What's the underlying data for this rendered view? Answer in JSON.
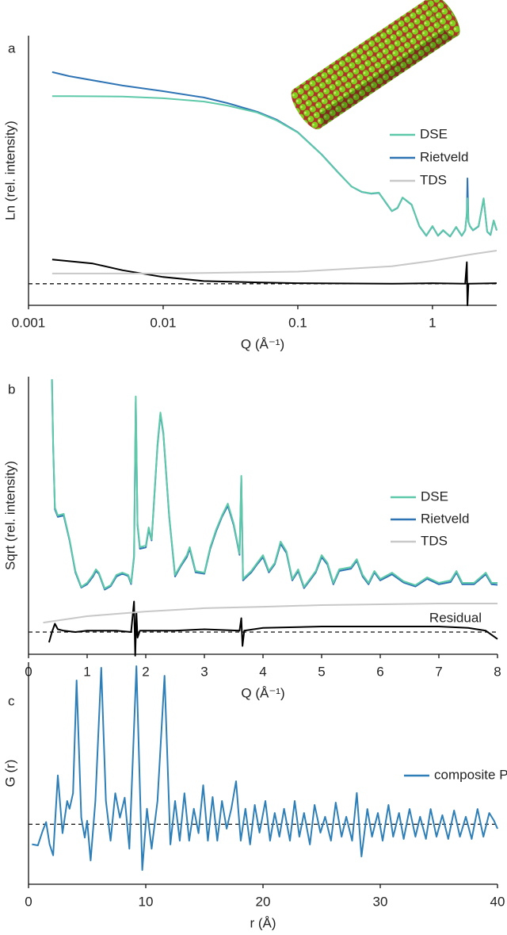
{
  "chart_data": [
    {
      "type": "line",
      "panel_label": "a",
      "xlabel": "Q (Å⁻¹)",
      "ylabel": "Ln (rel. intensity)",
      "log_x": true,
      "xlim": [
        0.001,
        3.0
      ],
      "xticks": [
        0.001,
        0.01,
        0.1,
        1
      ],
      "ylim": [
        0,
        10
      ],
      "zero_line": 0.8,
      "series": [
        {
          "name": "DSE",
          "color": "#5ec9a9",
          "x": [
            0.0015,
            0.002,
            0.005,
            0.01,
            0.02,
            0.03,
            0.05,
            0.07,
            0.1,
            0.15,
            0.2,
            0.25,
            0.3,
            0.35,
            0.4,
            0.45,
            0.5,
            0.55,
            0.6,
            0.7,
            0.8,
            0.9,
            1.0,
            1.1,
            1.2,
            1.35,
            1.5,
            1.65,
            1.75,
            1.8,
            1.82,
            1.85,
            1.9,
            2.0,
            2.2,
            2.4,
            2.55,
            2.7,
            2.85,
            3.0
          ],
          "values": [
            7.76,
            7.76,
            7.74,
            7.68,
            7.56,
            7.41,
            7.15,
            6.85,
            6.41,
            5.59,
            4.91,
            4.41,
            4.21,
            4.15,
            4.18,
            3.82,
            3.5,
            3.62,
            4.0,
            3.74,
            2.94,
            2.59,
            2.94,
            2.59,
            2.79,
            2.56,
            2.91,
            2.59,
            2.79,
            3.38,
            3.97,
            3.09,
            2.94,
            2.79,
            2.94,
            3.97,
            2.74,
            2.62,
            3.15,
            2.79
          ]
        },
        {
          "name": "Rietveld",
          "color": "#2e74b5",
          "x": [
            0.0015,
            0.002,
            0.005,
            0.01,
            0.02,
            0.03,
            0.05,
            0.07,
            0.1,
            0.15,
            0.2,
            0.25,
            0.3,
            0.35,
            0.4,
            0.45,
            0.5,
            0.55,
            0.6,
            0.7,
            0.8,
            0.9,
            1.0,
            1.1,
            1.2,
            1.35,
            1.5,
            1.65,
            1.75,
            1.8,
            1.82,
            1.85,
            1.9,
            2.0,
            2.2,
            2.4,
            2.55,
            2.7,
            2.85,
            3.0
          ],
          "values": [
            8.65,
            8.5,
            8.15,
            7.94,
            7.71,
            7.5,
            7.18,
            6.88,
            6.42,
            5.6,
            4.92,
            4.41,
            4.2,
            4.14,
            4.17,
            3.81,
            3.49,
            3.61,
            3.99,
            3.73,
            2.93,
            2.58,
            2.93,
            2.58,
            2.78,
            2.55,
            2.9,
            2.58,
            2.78,
            3.4,
            4.71,
            3.1,
            2.93,
            2.78,
            2.93,
            3.95,
            2.73,
            2.61,
            3.14,
            2.78
          ]
        },
        {
          "name": "TDS",
          "color": "#c8c8c8",
          "x": [
            0.0015,
            0.01,
            0.1,
            0.5,
            1,
            2,
            3
          ],
          "values": [
            1.18,
            1.18,
            1.25,
            1.45,
            1.65,
            1.9,
            2.03
          ]
        },
        {
          "color": "#000000",
          "x": [
            0.0015,
            0.003,
            0.005,
            0.01,
            0.02,
            0.05,
            0.1,
            0.5,
            1,
            1.75,
            1.8,
            1.82,
            1.85,
            3.0
          ],
          "values": [
            1.7,
            1.55,
            1.3,
            1.05,
            0.9,
            0.85,
            0.82,
            0.8,
            0.82,
            0.8,
            1.6,
            0.0,
            0.8,
            0.82
          ]
        }
      ]
    },
    {
      "type": "line",
      "panel_label": "b",
      "xlabel": "Q (Å⁻¹)",
      "ylabel": "Sqrt (rel. intensity)",
      "annotation": "Residual",
      "xlim": [
        0,
        8
      ],
      "xticks": [
        0,
        1,
        2,
        3,
        4,
        5,
        6,
        7,
        8
      ],
      "ylim": [
        0,
        10
      ],
      "zero_line": 0.8,
      "series": [
        {
          "name": "DSE",
          "color": "#5ec9a9",
          "x": [
            0.4,
            0.42,
            0.45,
            0.5,
            0.6,
            0.7,
            0.8,
            0.9,
            1.0,
            1.1,
            1.15,
            1.2,
            1.3,
            1.4,
            1.5,
            1.6,
            1.7,
            1.75,
            1.8,
            1.83,
            1.86,
            1.9,
            2.0,
            2.05,
            2.1,
            2.2,
            2.25,
            2.3,
            2.4,
            2.5,
            2.6,
            2.7,
            2.75,
            2.85,
            3.0,
            3.1,
            3.2,
            3.3,
            3.4,
            3.5,
            3.6,
            3.63,
            3.66,
            3.7,
            3.8,
            3.9,
            4.0,
            4.1,
            4.2,
            4.3,
            4.4,
            4.5,
            4.6,
            4.7,
            4.8,
            4.9,
            5.0,
            5.1,
            5.2,
            5.3,
            5.5,
            5.6,
            5.7,
            5.8,
            5.9,
            6.0,
            6.2,
            6.4,
            6.6,
            6.8,
            7.0,
            7.2,
            7.3,
            7.4,
            7.6,
            7.8,
            7.9,
            8.0
          ],
          "values": [
            9.91,
            7.57,
            5.29,
            5.0,
            5.06,
            4.14,
            3.0,
            2.43,
            2.57,
            2.86,
            3.06,
            2.94,
            2.37,
            2.49,
            2.86,
            2.94,
            2.86,
            2.57,
            3.57,
            9.29,
            4.71,
            3.86,
            3.91,
            4.57,
            4.14,
            7.57,
            8.71,
            8.0,
            5.0,
            2.86,
            3.23,
            3.57,
            3.86,
            3.0,
            2.94,
            3.86,
            4.49,
            5.0,
            5.43,
            4.71,
            3.63,
            6.43,
            2.71,
            2.8,
            3.0,
            3.29,
            3.57,
            3.0,
            3.29,
            4.06,
            3.71,
            2.71,
            3.06,
            2.43,
            2.71,
            3.0,
            3.57,
            3.29,
            2.57,
            3.06,
            3.14,
            3.43,
            2.86,
            2.57,
            3.0,
            2.71,
            2.94,
            2.63,
            2.49,
            2.77,
            2.57,
            2.66,
            3.0,
            2.57,
            2.57,
            2.94,
            2.57,
            2.57
          ]
        },
        {
          "name": "Rietveld",
          "color": "#2e74b5",
          "x": [
            0.4,
            0.42,
            0.45,
            0.5,
            0.6,
            0.7,
            0.8,
            0.9,
            1.0,
            1.1,
            1.15,
            1.2,
            1.3,
            1.4,
            1.5,
            1.6,
            1.7,
            1.75,
            1.8,
            1.83,
            1.86,
            1.9,
            2.0,
            2.05,
            2.1,
            2.2,
            2.25,
            2.3,
            2.4,
            2.5,
            2.6,
            2.7,
            2.75,
            2.85,
            3.0,
            3.1,
            3.2,
            3.3,
            3.4,
            3.5,
            3.6,
            3.63,
            3.66,
            3.7,
            3.8,
            3.9,
            4.0,
            4.1,
            4.2,
            4.3,
            4.4,
            4.5,
            4.6,
            4.7,
            4.8,
            4.9,
            5.0,
            5.1,
            5.2,
            5.3,
            5.5,
            5.6,
            5.7,
            5.8,
            5.9,
            6.0,
            6.2,
            6.4,
            6.6,
            6.8,
            7.0,
            7.2,
            7.3,
            7.4,
            7.6,
            7.8,
            7.9,
            8.0
          ],
          "values": [
            9.9,
            7.5,
            5.22,
            4.95,
            5.0,
            4.1,
            2.95,
            2.4,
            2.52,
            2.8,
            3.0,
            2.9,
            2.33,
            2.45,
            2.8,
            2.9,
            2.82,
            2.53,
            3.5,
            9.1,
            4.65,
            3.8,
            3.85,
            4.5,
            4.1,
            7.5,
            8.65,
            7.95,
            4.95,
            2.8,
            3.18,
            3.5,
            3.8,
            2.95,
            2.9,
            3.8,
            4.43,
            4.95,
            5.35,
            4.65,
            3.58,
            6.35,
            2.66,
            2.75,
            2.95,
            3.24,
            3.5,
            2.95,
            3.24,
            3.98,
            3.65,
            2.66,
            3.0,
            2.38,
            2.66,
            2.95,
            3.5,
            3.23,
            2.52,
            3.0,
            3.08,
            3.37,
            2.8,
            2.52,
            2.95,
            2.66,
            2.88,
            2.58,
            2.44,
            2.72,
            2.52,
            2.6,
            2.94,
            2.52,
            2.52,
            2.88,
            2.52,
            2.5
          ]
        },
        {
          "name": "TDS",
          "color": "#c8c8c8",
          "x": [
            0.25,
            1,
            2,
            3,
            4,
            5,
            6,
            7,
            8
          ],
          "values": [
            1.14,
            1.37,
            1.54,
            1.66,
            1.71,
            1.77,
            1.8,
            1.83,
            1.83
          ]
        },
        {
          "color": "#000000",
          "x": [
            0.35,
            0.4,
            0.45,
            0.5,
            0.6,
            0.8,
            1.0,
            1.5,
            1.75,
            1.8,
            1.82,
            1.84,
            1.86,
            1.9,
            2.5,
            3.0,
            3.6,
            3.63,
            3.65,
            3.68,
            4.0,
            5.0,
            6.0,
            7.0,
            7.5,
            7.8,
            8.0
          ],
          "values": [
            0.43,
            0.8,
            1.1,
            0.9,
            0.85,
            0.8,
            0.85,
            0.85,
            0.8,
            1.9,
            -0.05,
            1.5,
            0.6,
            0.85,
            0.85,
            0.9,
            0.85,
            1.3,
            0.3,
            0.85,
            0.95,
            1.0,
            1.0,
            1.0,
            0.95,
            0.85,
            0.55
          ]
        }
      ]
    },
    {
      "type": "line",
      "panel_label": "c",
      "xlabel": "r (Å)",
      "ylabel": "G (r)",
      "xlim": [
        0,
        40
      ],
      "xticks": [
        0,
        10,
        20,
        30,
        40
      ],
      "ylim": [
        0,
        10
      ],
      "zero_line": 2.7,
      "series": [
        {
          "name": "composite PDF",
          "color": "#2e7fb8",
          "x": [
            0.3,
            0.8,
            1.2,
            1.5,
            1.8,
            2.1,
            2.5,
            2.9,
            3.3,
            3.5,
            3.8,
            4.1,
            4.5,
            4.8,
            5.0,
            5.3,
            5.7,
            6.2,
            6.6,
            7.0,
            7.4,
            7.8,
            8.2,
            8.6,
            9.2,
            9.7,
            10.1,
            10.5,
            11.0,
            11.6,
            12.1,
            12.5,
            12.9,
            13.3,
            13.7,
            14.1,
            14.5,
            14.9,
            15.3,
            15.7,
            16.1,
            16.5,
            16.9,
            17.3,
            17.7,
            18.1,
            18.5,
            18.9,
            19.3,
            19.7,
            20.2,
            20.6,
            21.0,
            21.4,
            21.8,
            22.3,
            22.7,
            23.1,
            23.5,
            24.0,
            24.4,
            24.9,
            25.3,
            25.8,
            26.2,
            26.7,
            27.1,
            27.6,
            28.0,
            28.4,
            28.9,
            29.3,
            29.8,
            30.2,
            30.7,
            31.1,
            31.6,
            32.0,
            32.5,
            33.0,
            33.4,
            33.9,
            34.3,
            34.8,
            35.3,
            35.8,
            36.3,
            36.8,
            37.3,
            37.8,
            38.3,
            38.8,
            39.3,
            39.7,
            40.0
          ],
          "values": [
            1.8,
            1.75,
            2.4,
            2.8,
            1.8,
            1.3,
            4.9,
            2.3,
            3.75,
            3.4,
            4.1,
            9.18,
            3.0,
            2.1,
            2.86,
            1.07,
            3.75,
            9.75,
            3.75,
            1.96,
            4.1,
            3.0,
            3.9,
            1.6,
            9.82,
            0.64,
            3.4,
            1.6,
            3.75,
            9.39,
            1.79,
            3.75,
            1.96,
            4.1,
            1.96,
            3.4,
            2.3,
            4.46,
            1.96,
            3.93,
            1.96,
            3.75,
            2.5,
            3.4,
            4.64,
            1.96,
            3.4,
            1.79,
            3.57,
            2.32,
            3.75,
            1.96,
            3.21,
            2.14,
            3.4,
            1.96,
            3.75,
            2.14,
            3.21,
            1.79,
            3.57,
            2.32,
            3.04,
            1.96,
            3.68,
            2.14,
            3.04,
            1.96,
            4.11,
            1.25,
            3.39,
            2.14,
            3.21,
            1.96,
            3.57,
            2.14,
            3.21,
            2.04,
            3.39,
            2.14,
            3.04,
            2.04,
            3.39,
            2.14,
            3.11,
            2.04,
            3.32,
            2.14,
            3.04,
            2.04,
            3.39,
            2.14,
            3.21,
            2.86,
            2.5
          ]
        }
      ]
    }
  ]
}
